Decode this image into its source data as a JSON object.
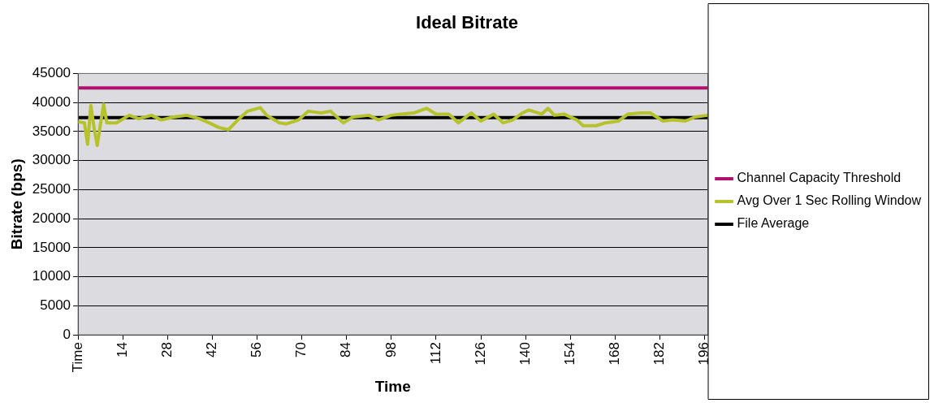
{
  "chart_data": {
    "type": "line",
    "title": "Ideal Bitrate",
    "xlabel": "Time",
    "ylabel": "Bitrate (bps)",
    "xlim": [
      0,
      197
    ],
    "xticks": [
      {
        "value": 0,
        "label": "Time"
      },
      14,
      28,
      42,
      56,
      70,
      84,
      98,
      112,
      126,
      140,
      154,
      168,
      182,
      196
    ],
    "ylim": [
      0,
      45000
    ],
    "yticks": [
      0,
      5000,
      10000,
      15000,
      20000,
      25000,
      30000,
      35000,
      40000,
      45000
    ],
    "grid": "y",
    "legend": "right",
    "marker": "none",
    "line_style": "solid",
    "series": [
      {
        "name": "Channel Capacity Threshold",
        "color": "#b0106e",
        "x": [
          0,
          197
        ],
        "values": [
          42500,
          42500
        ]
      },
      {
        "name": "Avg Over 1 Sec Rolling Window",
        "color": "#b5c22a",
        "x": [
          0,
          2,
          3,
          4,
          5,
          6,
          8,
          9,
          12,
          16,
          19,
          23,
          26,
          30,
          34,
          38,
          41,
          44,
          47,
          50,
          53,
          57,
          59,
          63,
          65,
          69,
          72,
          76,
          79,
          83,
          86,
          91,
          94,
          98,
          101,
          105,
          109,
          112,
          116,
          119,
          123,
          126,
          130,
          133,
          136,
          139,
          141,
          145,
          147,
          149,
          152,
          156,
          158,
          162,
          165,
          169,
          172,
          176,
          179,
          183,
          186,
          190,
          193,
          197
        ],
        "values": [
          36700,
          36500,
          32800,
          39500,
          35700,
          32600,
          39700,
          36500,
          36500,
          37800,
          37200,
          37800,
          37000,
          37500,
          37800,
          37200,
          36500,
          35700,
          35300,
          37000,
          38500,
          39100,
          37800,
          36500,
          36300,
          37000,
          38500,
          38200,
          38500,
          36500,
          37500,
          37800,
          37000,
          37800,
          38000,
          38200,
          39000,
          38000,
          38000,
          36500,
          38200,
          36800,
          38000,
          36500,
          37000,
          38200,
          38700,
          38000,
          39000,
          37800,
          38000,
          37000,
          36000,
          36000,
          36500,
          36800,
          38000,
          38200,
          38200,
          36800,
          37000,
          36800,
          37500,
          37800
        ]
      },
      {
        "name": "File Average",
        "color": "#000000",
        "x": [
          0,
          197
        ],
        "values": [
          37400,
          37400
        ]
      }
    ]
  }
}
